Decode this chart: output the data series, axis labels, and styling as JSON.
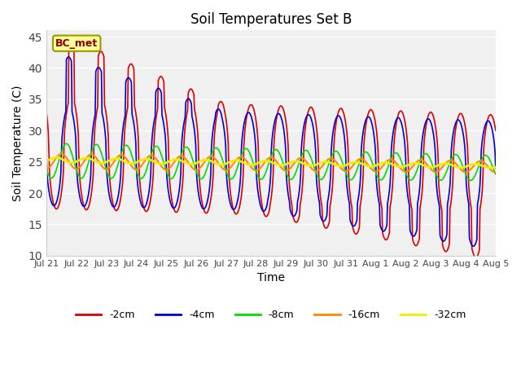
{
  "title": "Soil Temperatures Set B",
  "xlabel": "Time",
  "ylabel": "Soil Temperature (C)",
  "ylim": [
    10,
    46
  ],
  "yticks": [
    10,
    15,
    20,
    25,
    30,
    35,
    40,
    45
  ],
  "annotation": "BC_met",
  "series_colors": {
    "-2cm": "#dd0000",
    "-4cm": "#0000dd",
    "-8cm": "#00dd00",
    "-16cm": "#ff8800",
    "-32cm": "#eeee00"
  },
  "xtick_labels": [
    "Jul 21",
    "Jul 22",
    "Jul 23",
    "Jul 24",
    "Jul 25",
    "Jul 26",
    "Jul 27",
    "Jul 28",
    "Jul 29",
    "Jul 30",
    "Jul 31",
    "Aug 1",
    "Aug 2",
    "Aug 3",
    "Aug 4",
    "Aug 5"
  ],
  "num_days": 15,
  "pts_per_day": 48
}
